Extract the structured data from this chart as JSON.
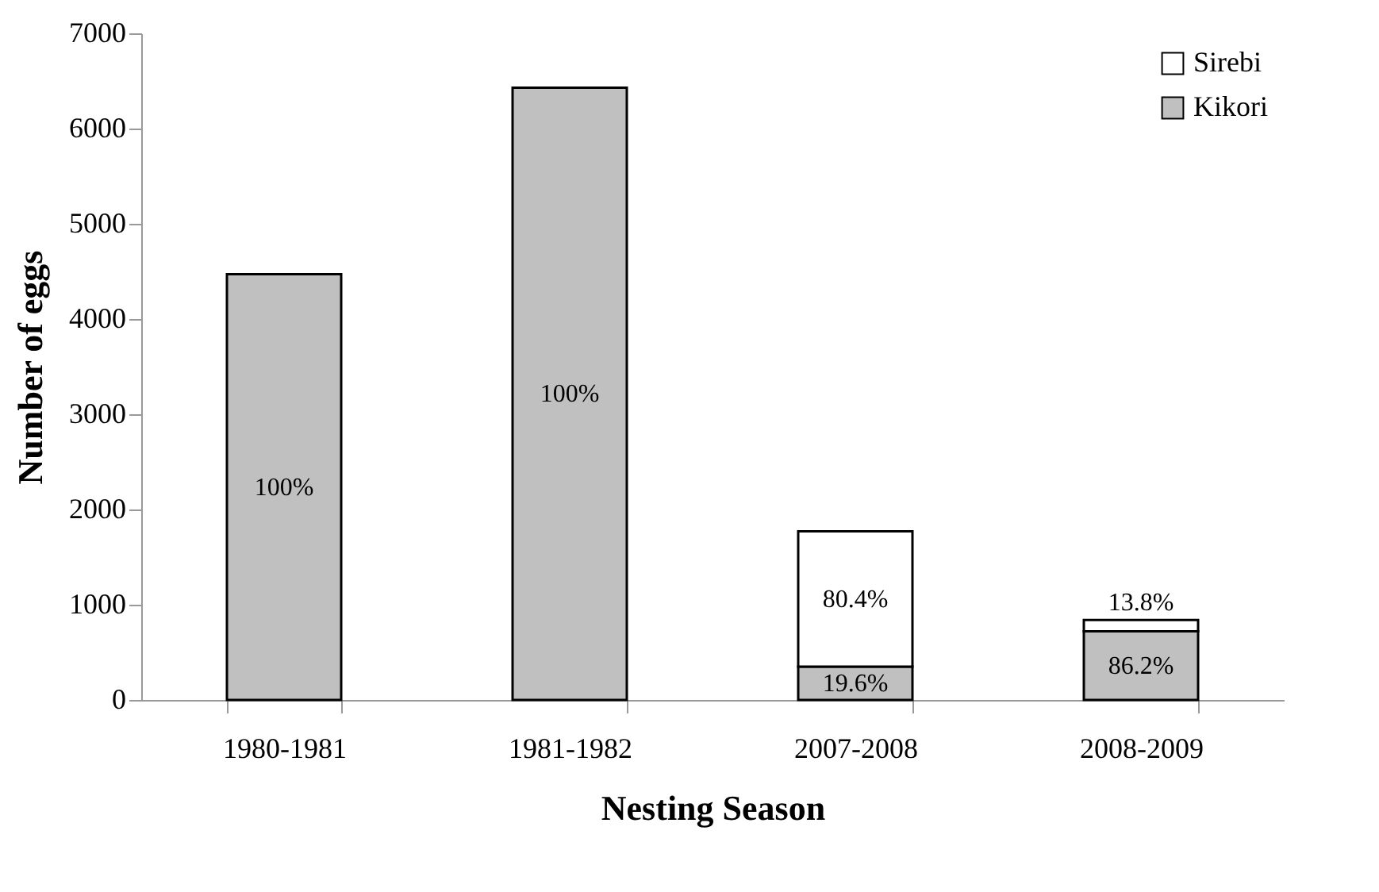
{
  "chart_data": {
    "type": "bar",
    "stacked": true,
    "xlabel": "Nesting Season",
    "ylabel": "Number of eggs",
    "categories": [
      "1980-1981",
      "1981-1982",
      "2007-2008",
      "2008-2009"
    ],
    "series": [
      {
        "name": "Kikori",
        "color": "#c0c0c0",
        "values": [
          4470,
          6430,
          350,
          720
        ]
      },
      {
        "name": "Sirebi",
        "color": "#ffffff",
        "values": [
          null,
          null,
          1420,
          120
        ]
      }
    ],
    "annotations": [
      "100%",
      "100%",
      "80.4%",
      "19.6%",
      "13.8%",
      "86.2%"
    ],
    "ylim": [
      0,
      7000
    ],
    "yticks": [
      0,
      1000,
      2000,
      3000,
      4000,
      5000,
      6000,
      7000
    ],
    "legend": "top right",
    "grid": false
  }
}
